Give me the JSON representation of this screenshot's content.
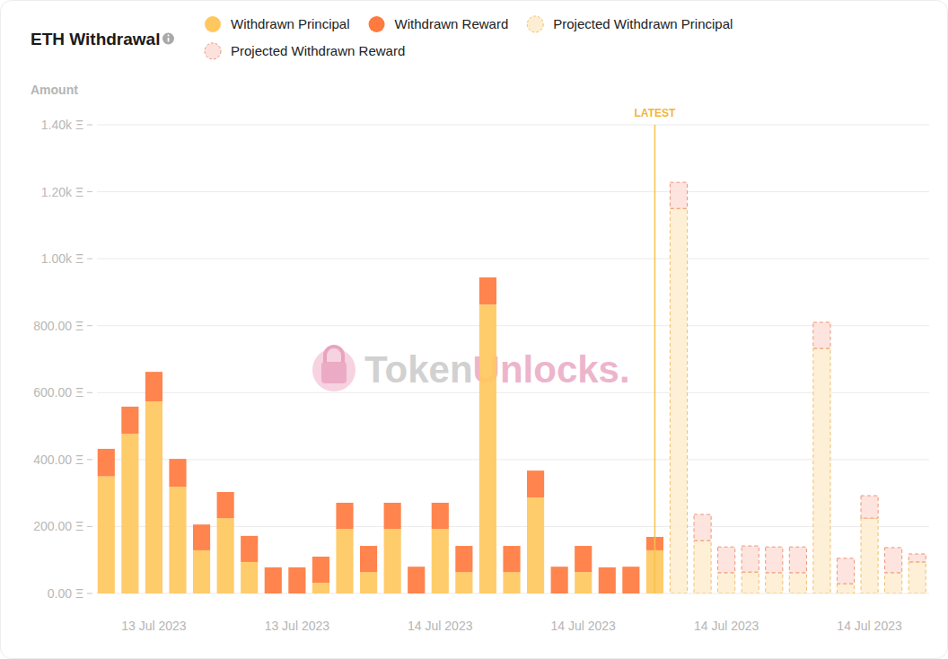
{
  "chart_data": {
    "type": "bar",
    "title": "ETH Withdrawal",
    "y_label": "Amount",
    "annotations": [
      "LATEST",
      "TokenUnlocks."
    ],
    "stacked": true,
    "grid": true,
    "legend": "top",
    "categories": [
      null,
      null,
      "13 Jul 2023",
      null,
      null,
      null,
      null,
      null,
      "13 Jul 2023",
      null,
      null,
      null,
      null,
      null,
      "14 Jul 2023",
      null,
      null,
      null,
      null,
      null,
      "14 Jul 2023",
      null,
      null,
      null,
      null,
      null,
      "14 Jul 2023",
      null,
      null,
      null,
      null,
      null,
      "14 Jul 2023",
      null,
      null
    ],
    "ylim": [
      0,
      1400
    ],
    "yticks": [
      {
        "value": 0,
        "label": "0.00 Ξ"
      },
      {
        "value": 200,
        "label": "200.00 Ξ"
      },
      {
        "value": 400,
        "label": "400.00 Ξ"
      },
      {
        "value": 600,
        "label": "600.00 Ξ"
      },
      {
        "value": 800,
        "label": "800.00 Ξ"
      },
      {
        "value": 1000,
        "label": "1.00k Ξ"
      },
      {
        "value": 1200,
        "label": "1.20k Ξ"
      },
      {
        "value": 1400,
        "label": "1.40k Ξ"
      }
    ],
    "series": [
      {
        "name": "Withdrawn Principal",
        "color": "#ffc85f",
        "line_style": "solid",
        "values": [
          350,
          477,
          574,
          319,
          129,
          225,
          94,
          0,
          0,
          32,
          193,
          64,
          193,
          0,
          193,
          64,
          863,
          64,
          287,
          0,
          64,
          0,
          0,
          129,
          null,
          null,
          null,
          null,
          null,
          null,
          null,
          null,
          null,
          null,
          null
        ]
      },
      {
        "name": "Withdrawn Reward",
        "color": "#ff7a3e",
        "line_style": "solid",
        "values": [
          82,
          81,
          88,
          83,
          77,
          78,
          78,
          78,
          78,
          78,
          78,
          78,
          78,
          80,
          78,
          78,
          81,
          78,
          80,
          80,
          78,
          78,
          80,
          40,
          null,
          null,
          null,
          null,
          null,
          null,
          null,
          null,
          null,
          null,
          null
        ]
      },
      {
        "name": "Projected Withdrawn Principal",
        "color": "#fdeed3",
        "line_style": "dashed",
        "values": [
          null,
          null,
          null,
          null,
          null,
          null,
          null,
          null,
          null,
          null,
          null,
          null,
          null,
          null,
          null,
          null,
          null,
          null,
          null,
          null,
          null,
          null,
          null,
          null,
          1150,
          158,
          62,
          64,
          62,
          62,
          732,
          29,
          225,
          62,
          94
        ]
      },
      {
        "name": "Projected Withdrawn Reward",
        "color": "#fde1dc",
        "line_style": "dashed",
        "values": [
          null,
          null,
          null,
          null,
          null,
          null,
          null,
          null,
          null,
          null,
          null,
          null,
          null,
          null,
          null,
          null,
          null,
          null,
          null,
          null,
          null,
          null,
          null,
          null,
          78,
          78,
          77,
          78,
          77,
          77,
          78,
          76,
          67,
          75,
          24
        ]
      }
    ]
  }
}
